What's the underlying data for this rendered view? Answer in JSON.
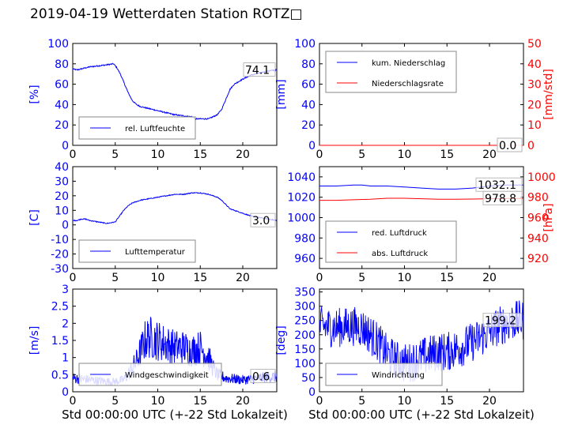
{
  "title": "2019-04-19 Wetterdaten Station ROTZ□",
  "colors": {
    "primary": "#0000ff",
    "secondary": "#ff0000",
    "axis": "#000000"
  },
  "chart_data": [
    {
      "id": "humidity",
      "type": "line",
      "ylabel": "[%]",
      "xlabel": "",
      "xlim": [
        0,
        24
      ],
      "ylim": [
        0,
        100
      ],
      "yticks": [
        0,
        20,
        40,
        60,
        80,
        100
      ],
      "xticks": [
        0,
        5,
        10,
        15,
        20
      ],
      "legend": "bottom-left",
      "annotation": "74.1",
      "series": [
        {
          "name": "rel. Luftfeuchte",
          "color": "#0000ff",
          "noise": 0.6,
          "x": [
            0,
            0.5,
            1,
            1.5,
            2,
            3,
            4,
            4.8,
            5.2,
            5.6,
            6,
            6.5,
            7,
            7.5,
            8,
            9,
            10,
            11,
            12,
            13,
            14,
            14.5,
            15,
            15.5,
            16,
            17,
            17.5,
            18,
            18.5,
            19,
            20,
            21,
            22,
            23,
            24
          ],
          "y": [
            75,
            74,
            75,
            76,
            77,
            78,
            79,
            80,
            76,
            70,
            62,
            52,
            44,
            40,
            38,
            36,
            34,
            32,
            30,
            29,
            28,
            26,
            26,
            26,
            26,
            30,
            35,
            45,
            55,
            60,
            65,
            69,
            71,
            73,
            74
          ]
        }
      ]
    },
    {
      "id": "precipitation",
      "type": "line",
      "ylabel": "[mm]",
      "ylabel_right": "[mm/std]",
      "xlabel": "",
      "xlim": [
        0,
        24
      ],
      "ylim": [
        0,
        100
      ],
      "ylim_right": [
        0,
        50
      ],
      "yticks": [
        0,
        20,
        40,
        60,
        80,
        100
      ],
      "yticks_right": [
        0,
        10,
        20,
        30,
        40,
        50
      ],
      "xticks": [
        0,
        5,
        10,
        15,
        20
      ],
      "legend": "top-left",
      "annotation": "0.0",
      "annotation2": "0.0",
      "series": [
        {
          "name": "kum. Niederschlag",
          "color": "#0000ff",
          "axis": "left",
          "x": [
            0,
            24
          ],
          "y": [
            0,
            0
          ]
        },
        {
          "name": "Niederschlagsrate",
          "color": "#ff0000",
          "axis": "right",
          "x": [
            0,
            24
          ],
          "y": [
            0,
            0
          ]
        }
      ]
    },
    {
      "id": "temperature",
      "type": "line",
      "ylabel": "[C]",
      "xlabel": "",
      "xlim": [
        0,
        24
      ],
      "ylim": [
        -30,
        40
      ],
      "yticks": [
        -30,
        -20,
        -10,
        0,
        10,
        20,
        30,
        40
      ],
      "xticks": [
        0,
        5,
        10,
        15,
        20
      ],
      "legend": "bottom-left",
      "annotation": "3.0",
      "series": [
        {
          "name": "Lufttemperatur",
          "color": "#0000ff",
          "noise": 0.3,
          "x": [
            0,
            0.5,
            1,
            1.5,
            2,
            3,
            4,
            5,
            5.5,
            6,
            6.5,
            7,
            7.5,
            8,
            9,
            10,
            11,
            12,
            13,
            14,
            14.5,
            15,
            16,
            17,
            17.5,
            18,
            18.5,
            19,
            20,
            21,
            22,
            23,
            24
          ],
          "y": [
            3,
            3,
            4,
            4,
            3,
            2,
            1,
            2,
            6,
            10,
            13,
            15,
            16,
            17,
            18,
            19,
            20,
            21,
            21,
            22,
            22,
            22,
            21,
            19,
            17,
            14,
            11,
            10,
            8,
            6,
            5,
            4,
            3
          ]
        }
      ]
    },
    {
      "id": "pressure",
      "type": "line",
      "ylabel": "",
      "ylabel_right": "[hPa]",
      "xlabel": "",
      "xlim": [
        0,
        24
      ],
      "ylim": [
        950,
        1050
      ],
      "ylim_right": [
        910,
        1010
      ],
      "yticks": [
        960,
        980,
        1000,
        1020,
        1040
      ],
      "yticks_right": [
        920,
        940,
        960,
        980,
        1000
      ],
      "xticks": [
        0,
        5,
        10,
        15,
        20
      ],
      "legend": "bottom-left",
      "annotation": "1032.1",
      "annotation2": "978.8",
      "series": [
        {
          "name": "red. Luftdruck",
          "color": "#0000ff",
          "axis": "left",
          "x": [
            0,
            2,
            4,
            5,
            6,
            8,
            10,
            12,
            14,
            16,
            18,
            20,
            22,
            24
          ],
          "y": [
            1031,
            1031,
            1032,
            1032,
            1031,
            1031,
            1030,
            1029,
            1028,
            1028,
            1029,
            1031,
            1032,
            1032
          ]
        },
        {
          "name": "abs. Luftdruck",
          "color": "#ff0000",
          "axis": "right",
          "x": [
            0,
            2,
            4,
            6,
            8,
            10,
            12,
            14,
            16,
            18,
            20,
            22,
            24
          ],
          "y": [
            977,
            977,
            977.5,
            978,
            979,
            979,
            978.5,
            978,
            978,
            978.2,
            978.5,
            978.8,
            978.8
          ]
        }
      ]
    },
    {
      "id": "wind_speed",
      "type": "line",
      "ylabel": "[m/s]",
      "xlabel": "Std 00:00:00 UTC (+-22 Std Lokalzeit)",
      "xlim": [
        0,
        24
      ],
      "ylim": [
        0,
        3
      ],
      "yticks": [
        0.0,
        0.5,
        1.0,
        1.5,
        2.0,
        2.5,
        3.0
      ],
      "xticks": [
        0,
        5,
        10,
        15,
        20
      ],
      "legend": "bottom-left",
      "annotation": "0.6",
      "series": [
        {
          "name": "Windgeschwindigkeit",
          "color": "#0000ff",
          "noise": 0.4,
          "x": [
            0,
            2,
            4,
            5,
            6,
            6.5,
            7,
            7.5,
            8,
            8.5,
            9,
            10,
            11,
            12,
            13,
            14,
            15,
            16,
            16.5,
            17,
            18,
            20,
            22,
            24
          ],
          "y": [
            0.4,
            0.35,
            0.3,
            0.3,
            0.35,
            0.5,
            0.7,
            0.9,
            1.2,
            1.5,
            1.6,
            1.5,
            1.4,
            1.3,
            1.3,
            1.2,
            1.3,
            1.0,
            0.7,
            0.5,
            0.4,
            0.35,
            0.4,
            0.45
          ]
        }
      ]
    },
    {
      "id": "wind_direction",
      "type": "line",
      "ylabel": "[deg]",
      "xlabel": "Std 00:00:00 UTC (+-22 Std Lokalzeit)",
      "xlim": [
        0,
        24
      ],
      "ylim": [
        0,
        360
      ],
      "yticks": [
        0,
        50,
        100,
        150,
        200,
        250,
        300,
        350
      ],
      "xticks": [
        0,
        5,
        10,
        15,
        20
      ],
      "legend": "bottom-left",
      "annotation": "199.2",
      "series": [
        {
          "name": "Windrichtung",
          "color": "#0000ff",
          "noise": 70,
          "x": [
            0,
            2,
            4,
            5,
            6,
            7,
            8,
            9,
            10,
            11,
            12,
            13,
            14,
            15,
            16,
            17,
            18,
            19,
            20,
            21,
            22,
            23,
            24
          ],
          "y": [
            230,
            225,
            230,
            225,
            200,
            170,
            130,
            110,
            100,
            105,
            120,
            130,
            140,
            140,
            150,
            160,
            175,
            190,
            210,
            230,
            240,
            250,
            250
          ]
        }
      ]
    }
  ]
}
